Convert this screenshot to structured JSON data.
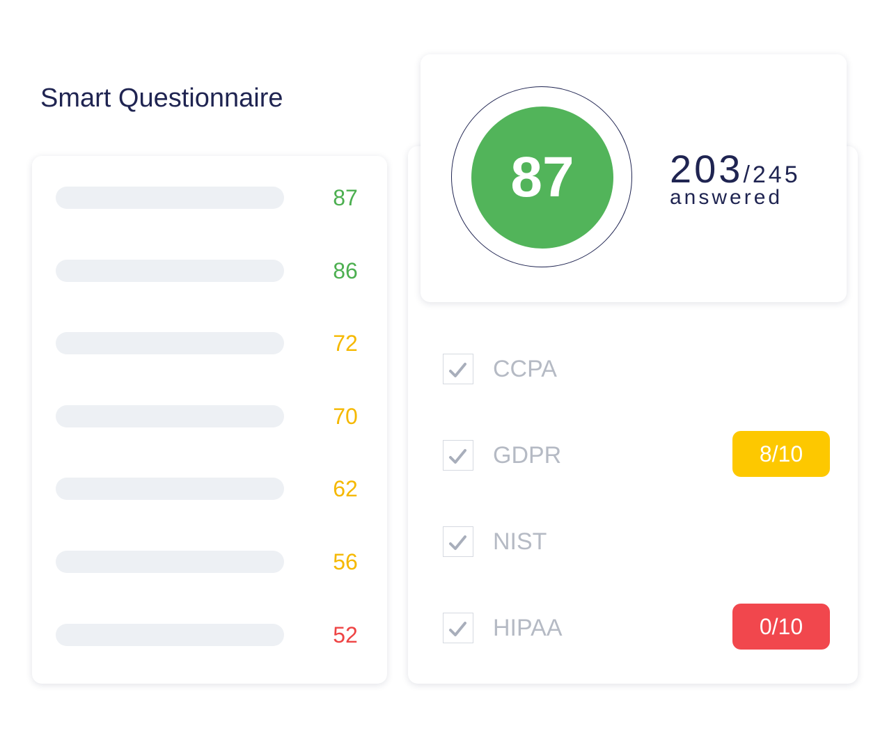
{
  "title": "Smart Questionnaire",
  "scores": [
    {
      "value": 87,
      "color": "#4caf50"
    },
    {
      "value": 86,
      "color": "#4caf50"
    },
    {
      "value": 72,
      "color": "#f5b800"
    },
    {
      "value": 70,
      "color": "#f5b800"
    },
    {
      "value": 62,
      "color": "#f5b800"
    },
    {
      "value": 56,
      "color": "#f5b800"
    },
    {
      "value": 52,
      "color": "#ee4444"
    }
  ],
  "summary": {
    "score": 87,
    "score_color": "#52b45a",
    "answered": 203,
    "total": "/245",
    "label": "answered"
  },
  "frameworks": [
    {
      "name": "CCPA"
    },
    {
      "name": "GDPR",
      "badge": "8/10",
      "badge_color": "#fdc800"
    },
    {
      "name": "NIST"
    },
    {
      "name": "HIPAA",
      "badge": "0/10",
      "badge_color": "#f1474d"
    }
  ]
}
